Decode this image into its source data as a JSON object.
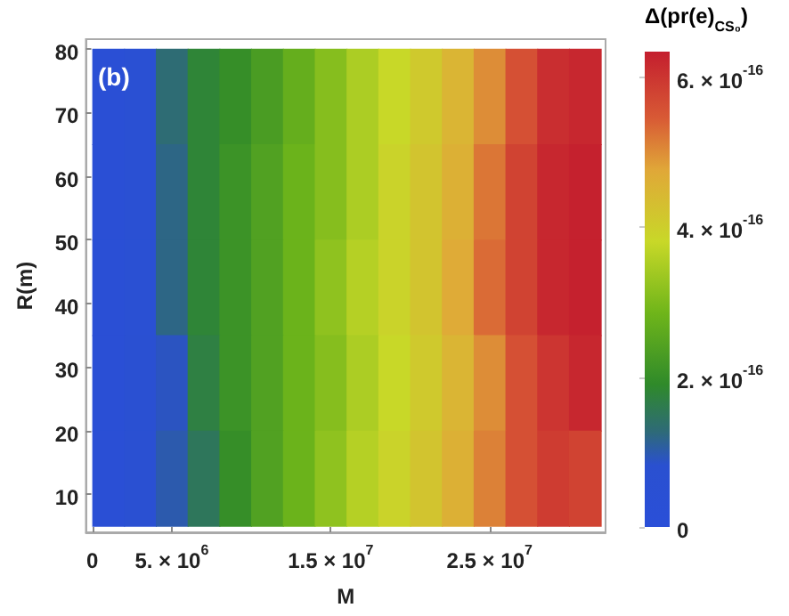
{
  "chart_data": {
    "type": "heatmap",
    "xlabel": "M",
    "ylabel": "R(m)",
    "clabel": "Δ(pr(e)$_{CS₀}$)",
    "annotations": [
      "(b)"
    ],
    "x": [
      1000000,
      3000000,
      5000000,
      7000000,
      9000000,
      11000000,
      13000000,
      15000000,
      17000000,
      19000000,
      21000000,
      23000000,
      25000000,
      27000000,
      29000000,
      31000000
    ],
    "y": [
      72.5,
      57.5,
      42.5,
      27.5,
      12.5
    ],
    "cells": [
      [
        3e-17,
        5e-17,
        1.3e-16,
        1.8e-16,
        2e-16,
        2.3e-16,
        2.7e-16,
        3.1e-16,
        3.5e-16,
        3.8e-16,
        4.1e-16,
        4.5e-16,
        5e-16,
        5.6e-16,
        6.1e-16,
        6.2e-16
      ],
      [
        3e-17,
        5e-17,
        1.2e-16,
        1.8e-16,
        2.1e-16,
        2.4e-16,
        2.8e-16,
        3.1e-16,
        3.5e-16,
        3.9e-16,
        4.2e-16,
        4.6e-16,
        5.2e-16,
        5.8e-16,
        6.2e-16,
        6.3e-16
      ],
      [
        3e-17,
        5e-17,
        1.2e-16,
        1.8e-16,
        2.1e-16,
        2.4e-16,
        2.8e-16,
        3.2e-16,
        3.6e-16,
        3.9e-16,
        4.2e-16,
        4.7e-16,
        5.3e-16,
        5.8e-16,
        6.2e-16,
        6.3e-16
      ],
      [
        3e-17,
        6e-17,
        9e-17,
        1.7e-16,
        2.1e-16,
        2.4e-16,
        2.8e-16,
        3.1e-16,
        3.5e-16,
        3.8e-16,
        4.1e-16,
        4.5e-16,
        5e-16,
        5.6e-16,
        6e-16,
        6.2e-16
      ],
      [
        3e-17,
        6e-17,
        1e-16,
        1.5e-16,
        2e-16,
        2.4e-16,
        2.8e-16,
        3.2e-16,
        3.6e-16,
        3.9e-16,
        4.2e-16,
        4.6e-16,
        5.1e-16,
        5.6e-16,
        5.9e-16,
        5.8e-16
      ]
    ],
    "xlim": [
      -400000,
      32300000
    ],
    "ylim": [
      4,
      81.5
    ],
    "xticks": [
      0,
      {
        "value": 5000000,
        "label": "5. × 10$^{6}$"
      },
      {
        "value": 15000000,
        "label": "1.5 × 10$^{7}$"
      },
      {
        "value": 25000000,
        "label": "2.5 × 10$^{7}$"
      }
    ],
    "yticks": [
      10,
      20,
      30,
      40,
      50,
      60,
      70,
      80
    ],
    "clim": [
      0,
      6.34e-16
    ],
    "cticks": [
      0,
      {
        "value": 2e-16,
        "label": "2. × 10$^{-16}$"
      },
      {
        "value": 4e-16,
        "label": "4. × 10$^{-16}$"
      },
      {
        "value": 6e-16,
        "label": "6. × 10$^{-16}$"
      }
    ]
  }
}
